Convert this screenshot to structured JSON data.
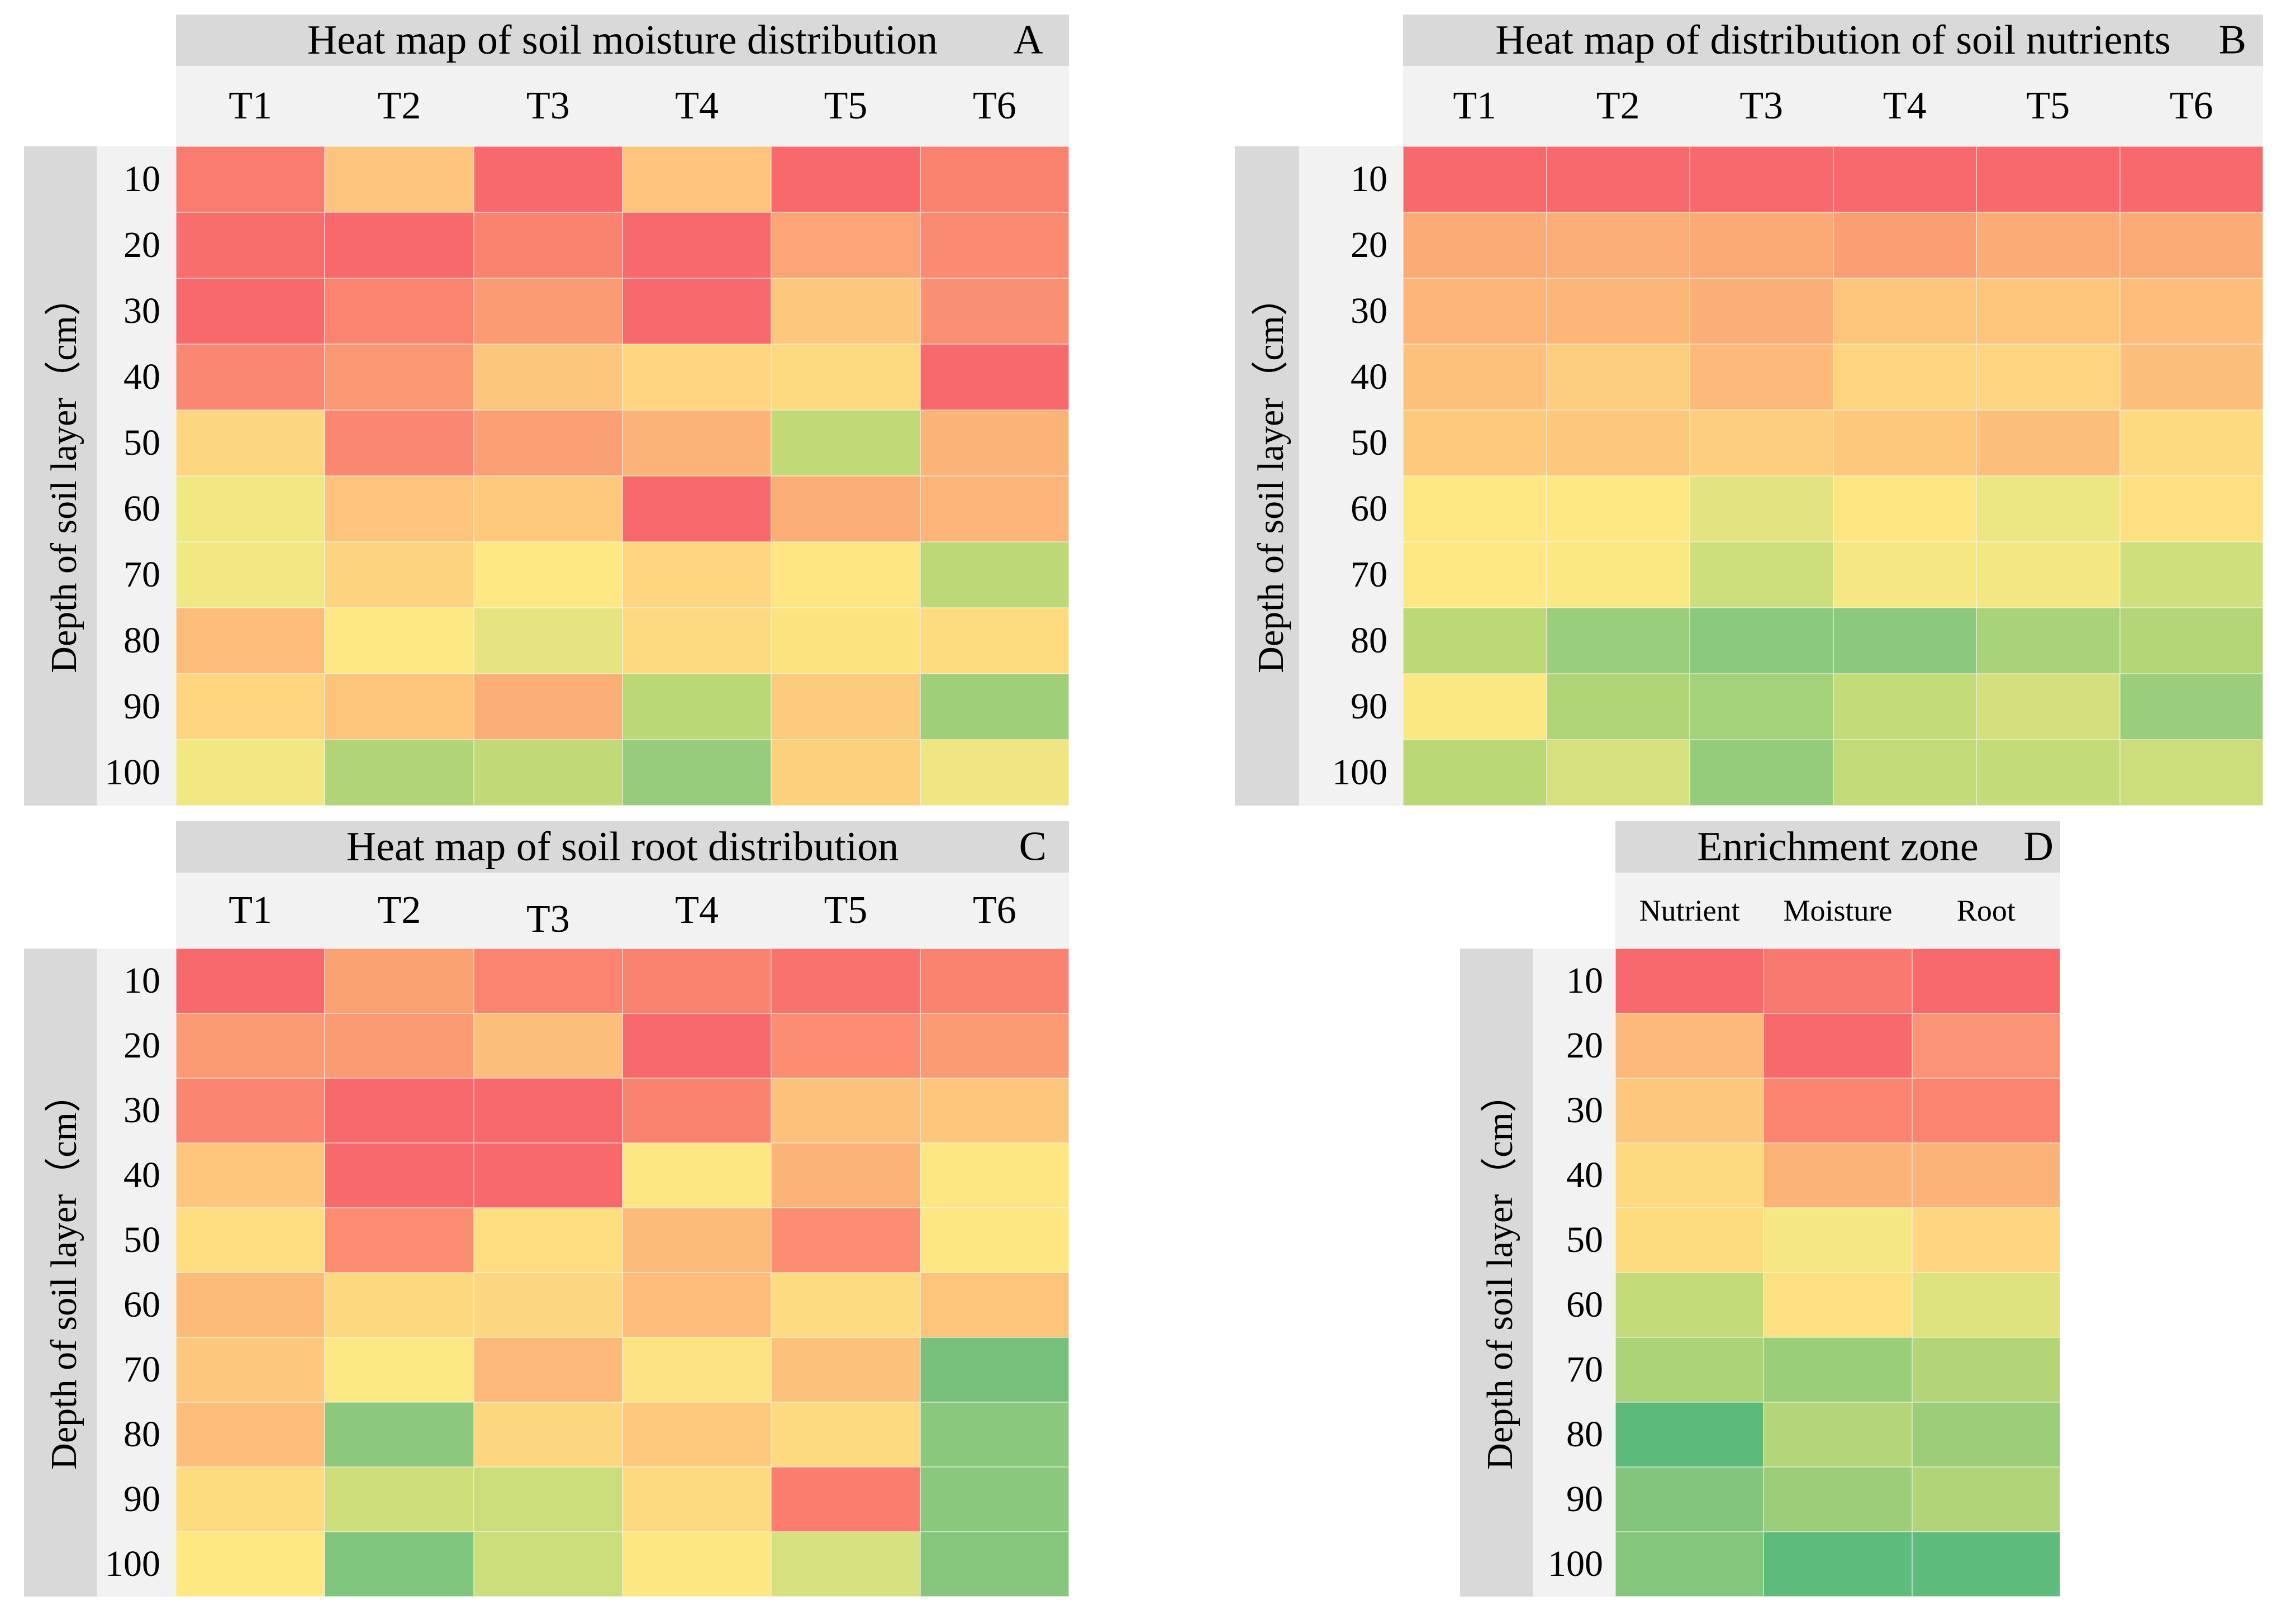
{
  "axis": {
    "label": "Depth of soil layer（cm）",
    "rows": [
      "10",
      "20",
      "30",
      "40",
      "50",
      "60",
      "70",
      "80",
      "90",
      "100"
    ]
  },
  "styles": {
    "title_bar_bg": "#D9D9D9",
    "label_strip_bg": "#F2F2F2",
    "colormap_high": "#F8696B",
    "colormap_mid": "#FFEB84",
    "colormap_low": "#63BE7B"
  },
  "chart_data": [
    {
      "type": "heatmap",
      "title": "Heat map of soil moisture distribution",
      "letter": "A",
      "columns": [
        "T1",
        "T2",
        "T3",
        "T4",
        "T5",
        "T6"
      ],
      "row_labels": [
        "10",
        "20",
        "30",
        "40",
        "50",
        "60",
        "70",
        "80",
        "90",
        "100"
      ],
      "col_dy": [
        0,
        0,
        0,
        0,
        0,
        0
      ],
      "colormap_note": "red = high, yellow = mid, green = low (no numeric labels shown)",
      "colors": [
        [
          "#F97A6E",
          "#FDC47D",
          "#F8696B",
          "#FDC37D",
          "#F8696B",
          "#FA8370"
        ],
        [
          "#F86E6C",
          "#F8696B",
          "#FA8370",
          "#F8696B",
          "#FBA476",
          "#FA8B72"
        ],
        [
          "#F8696B",
          "#FA8470",
          "#FB9B74",
          "#F8696B",
          "#FDC87D",
          "#FA9072"
        ],
        [
          "#FA8772",
          "#FB9874",
          "#FDC67D",
          "#FDD67F",
          "#FDD980",
          "#F8696B"
        ],
        [
          "#FDD780",
          "#FA8772",
          "#FB9F74",
          "#FCB377",
          "#C1D977",
          "#FCB377"
        ],
        [
          "#F0E883",
          "#FDC37C",
          "#FDC97D",
          "#F8696B",
          "#FBAD76",
          "#FCB477"
        ],
        [
          "#F0E883",
          "#FDD37F",
          "#FDE883",
          "#FDD67F",
          "#FDE682",
          "#BDD877"
        ],
        [
          "#FCBC7A",
          "#FDE883",
          "#E6E481",
          "#FDD97F",
          "#FDE380",
          "#FDDC80"
        ],
        [
          "#FDD67F",
          "#FDC57C",
          "#FBAF76",
          "#BBD877",
          "#FDCB7D",
          "#9FCF79"
        ],
        [
          "#F2E883",
          "#B0D477",
          "#C1D977",
          "#96CC7B",
          "#FDD07E",
          "#EFE683"
        ]
      ]
    },
    {
      "type": "heatmap",
      "title": "Heat map of distribution of soil nutrients",
      "letter": "B",
      "columns": [
        "T1",
        "T2",
        "T3",
        "T4",
        "T5",
        "T6"
      ],
      "row_labels": [
        "10",
        "20",
        "30",
        "40",
        "50",
        "60",
        "70",
        "80",
        "90",
        "100"
      ],
      "col_dy": [
        0,
        0,
        0,
        0,
        0,
        0
      ],
      "colormap_note": "red = high, yellow = mid, green = low (no numeric labels shown)",
      "colors": [
        [
          "#F8696B",
          "#F8696B",
          "#F8696B",
          "#F8696B",
          "#F8696B",
          "#F8696B"
        ],
        [
          "#FBAC76",
          "#FBAD77",
          "#FBA975",
          "#FB9E74",
          "#FBAC76",
          "#FBAB76"
        ],
        [
          "#FCB478",
          "#FCB678",
          "#FBAE76",
          "#FDC57C",
          "#FDC47C",
          "#FCBC7A"
        ],
        [
          "#FDC17B",
          "#FDCD7E",
          "#FCB97A",
          "#FDD57F",
          "#FDD47F",
          "#FCBF7B"
        ],
        [
          "#FDC97D",
          "#FDC87D",
          "#FDCE7E",
          "#FDC77C",
          "#FCBE7B",
          "#FDD97F"
        ],
        [
          "#FDE884",
          "#FDE884",
          "#E3E381",
          "#FDE682",
          "#EBE682",
          "#FDE180"
        ],
        [
          "#FDE884",
          "#FAE883",
          "#CCDE7B",
          "#F5E782",
          "#F3E782",
          "#CFDF7C"
        ],
        [
          "#BCD877",
          "#99CE7A",
          "#8BC97C",
          "#8CC97C",
          "#A8D378",
          "#B5D677"
        ],
        [
          "#FBE883",
          "#AFD577",
          "#A3D179",
          "#C4DB79",
          "#D5E07C",
          "#9BCE7A"
        ],
        [
          "#BBD877",
          "#D6E07D",
          "#95CC7B",
          "#C2DA78",
          "#C3DB79",
          "#CCDE7B"
        ]
      ]
    },
    {
      "type": "heatmap",
      "title": "Heat map of soil root distribution",
      "letter": "C",
      "columns": [
        "T1",
        "T2",
        "T3",
        "T4",
        "T5",
        "T6"
      ],
      "row_labels": [
        "10",
        "20",
        "30",
        "40",
        "50",
        "60",
        "70",
        "80",
        "90",
        "100"
      ],
      "col_dy": [
        0,
        0,
        16,
        0,
        0,
        0
      ],
      "colormap_note": "red = high, yellow = mid, green = low (no numeric labels shown)",
      "colors": [
        [
          "#F8696B",
          "#FBA273",
          "#FA8470",
          "#FA8370",
          "#F9726D",
          "#FA8370"
        ],
        [
          "#FA9B73",
          "#FA9B73",
          "#FCBE7B",
          "#F8696B",
          "#FA8D72",
          "#FB9B73"
        ],
        [
          "#FA8671",
          "#F8696B",
          "#F8696B",
          "#FA8370",
          "#FDC17B",
          "#FDC67C"
        ],
        [
          "#FDC67C",
          "#F8696B",
          "#F8696B",
          "#FDE782",
          "#FCB377",
          "#FDE782"
        ],
        [
          "#FDDD80",
          "#FA8D71",
          "#FDDD80",
          "#FCBB79",
          "#FA8D72",
          "#FDE782"
        ],
        [
          "#FCBB79",
          "#FDD87F",
          "#FDD77F",
          "#FCBD7A",
          "#FDDB80",
          "#FCC47B"
        ],
        [
          "#FDC87D",
          "#FDE983",
          "#FCB97A",
          "#FDE381",
          "#FCC17B",
          "#77C17D"
        ],
        [
          "#FCBE7A",
          "#8CC97C",
          "#FDD77F",
          "#FDCA7D",
          "#FDDA80",
          "#8AC87C"
        ],
        [
          "#FDDC80",
          "#CDDE7B",
          "#CBDD7A",
          "#FDDA80",
          "#FA7D6E",
          "#8AC87C"
        ],
        [
          "#FDE882",
          "#7FC57D",
          "#CBDD7A",
          "#FDE782",
          "#D6E07D",
          "#86C67C"
        ]
      ]
    },
    {
      "type": "heatmap",
      "title": "Enrichment zone",
      "letter": "D",
      "columns": [
        "Nutrient",
        "Moisture",
        "Root"
      ],
      "row_labels": [
        "10",
        "20",
        "30",
        "40",
        "50",
        "60",
        "70",
        "80",
        "90",
        "100"
      ],
      "col_dy": [
        0,
        0,
        0
      ],
      "colormap_note": "red = high, yellow = mid, green = low (no numeric labels shown)",
      "colors": [
        [
          "#F8696B",
          "#F97970",
          "#F8696B"
        ],
        [
          "#FCB97A",
          "#F8696B",
          "#FB9474"
        ],
        [
          "#FDC87D",
          "#FA8470",
          "#FA8470"
        ],
        [
          "#FDDA80",
          "#FCB376",
          "#FCB377"
        ],
        [
          "#FDDC80",
          "#F5E882",
          "#FDD67F"
        ],
        [
          "#C2DA78",
          "#FDE180",
          "#DEE27D"
        ],
        [
          "#ABD377",
          "#9BCE79",
          "#B4D577"
        ],
        [
          "#5CBB7B",
          "#B4D678",
          "#9CCE79"
        ],
        [
          "#83C57C",
          "#9CCE79",
          "#B0D477"
        ],
        [
          "#84C67C",
          "#5DBC7C",
          "#5DBC7C"
        ]
      ]
    }
  ]
}
